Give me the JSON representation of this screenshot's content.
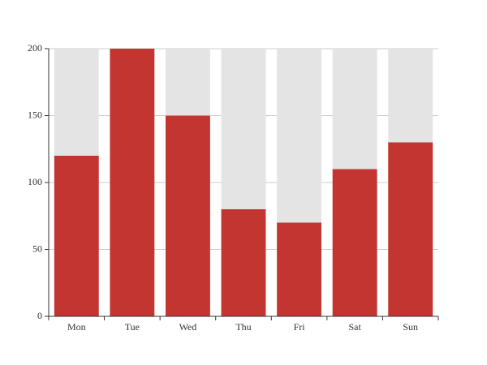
{
  "chart_data": {
    "type": "bar",
    "categories": [
      "Mon",
      "Tue",
      "Wed",
      "Thu",
      "Fri",
      "Sat",
      "Sun"
    ],
    "values": [
      120,
      200,
      150,
      80,
      70,
      110,
      130
    ],
    "color": "#c23531",
    "show_background": true,
    "background_color": "#e4e4e4",
    "ylim": [
      0,
      200
    ],
    "yticks": [
      0,
      50,
      100,
      150,
      200
    ],
    "grid": true
  }
}
